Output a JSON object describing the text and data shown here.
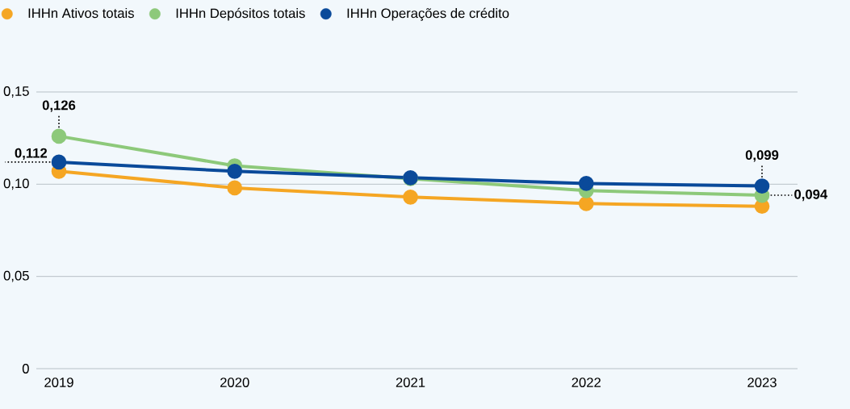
{
  "chart_data": {
    "type": "line",
    "categories": [
      "2019",
      "2020",
      "2021",
      "2022",
      "2023"
    ],
    "series": [
      {
        "name": "IHHn Ativos totais",
        "color": "#f5a623",
        "values": [
          0.107,
          0.098,
          0.093,
          0.0895,
          0.088
        ]
      },
      {
        "name": "IHHn Depósitos totais",
        "color": "#8dc97a",
        "values": [
          0.126,
          0.11,
          0.103,
          0.0965,
          0.094
        ]
      },
      {
        "name": "IHHn Operações de crédito",
        "color": "#0a4a9a",
        "values": [
          0.112,
          0.107,
          0.1035,
          0.1004,
          0.099
        ]
      }
    ],
    "ylim": [
      0,
      0.15
    ],
    "yticks": [
      0,
      {
        "value": 0.05,
        "label": "0,05"
      },
      {
        "value": 0.1,
        "label": "0,10"
      },
      {
        "value": 0.15,
        "label": "0,15"
      }
    ],
    "grid": "y",
    "legend": "top left",
    "marker": "circle",
    "line_style": "solid",
    "annotations": [
      {
        "text": "0,126",
        "x": "2019",
        "y": 0.126
      },
      {
        "text": "0,112",
        "x": "2019",
        "y": 0.112
      },
      {
        "text": "0,099",
        "x": "2023",
        "y": 0.099
      },
      {
        "text": "0,094",
        "x": "2023",
        "y": 0.094
      }
    ]
  }
}
